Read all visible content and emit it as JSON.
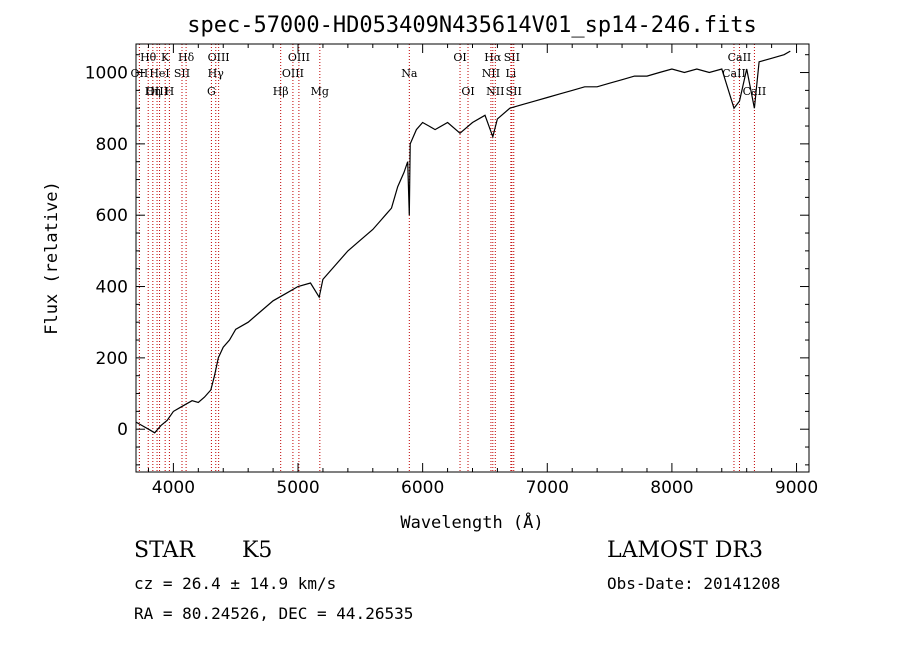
{
  "chart_data": {
    "type": "line",
    "title": "spec-57000-HD053409N435614V01_sp14-246.fits",
    "xlabel": "Wavelength (Å)",
    "ylabel": "Flux (relative)",
    "xlim": [
      3700,
      9100
    ],
    "ylim": [
      -120,
      1080
    ],
    "x_ticks": [
      4000,
      5000,
      6000,
      7000,
      8000,
      9000
    ],
    "y_ticks": [
      0,
      200,
      400,
      600,
      800,
      1000
    ],
    "grid": false,
    "series": [
      {
        "x": [
          3700,
          3750,
          3800,
          3850,
          3900,
          3950,
          4000,
          4050,
          4100,
          4150,
          4200,
          4250,
          4300,
          4330,
          4360,
          4400,
          4450,
          4500,
          4600,
          4700,
          4800,
          4900,
          5000,
          5100,
          5170,
          5200,
          5300,
          5400,
          5500,
          5600,
          5700,
          5750,
          5800,
          5850,
          5880,
          5893,
          5900,
          5950,
          6000,
          6050,
          6100,
          6200,
          6300,
          6400,
          6500,
          6563,
          6600,
          6700,
          6800,
          6900,
          7000,
          7100,
          7200,
          7300,
          7400,
          7500,
          7600,
          7700,
          7800,
          7900,
          8000,
          8100,
          8200,
          8300,
          8400,
          8498,
          8542,
          8600,
          8662,
          8700,
          8800,
          8900,
          8950
        ],
        "y": [
          20,
          10,
          0,
          -10,
          10,
          25,
          50,
          60,
          70,
          80,
          75,
          90,
          110,
          150,
          200,
          230,
          250,
          280,
          300,
          330,
          360,
          380,
          400,
          410,
          370,
          420,
          460,
          500,
          530,
          560,
          600,
          620,
          680,
          720,
          750,
          600,
          800,
          840,
          860,
          850,
          840,
          860,
          830,
          860,
          880,
          820,
          870,
          900,
          910,
          920,
          930,
          940,
          950,
          960,
          960,
          970,
          980,
          990,
          990,
          1000,
          1010,
          1000,
          1010,
          1000,
          1010,
          900,
          920,
          1010,
          900,
          1030,
          1040,
          1050,
          1060
        ]
      }
    ],
    "spectral_lines": [
      {
        "name": "Hθ",
        "w": 3798,
        "row": 1
      },
      {
        "name": "OII",
        "w": 3727,
        "row": 2
      },
      {
        "name": "OIII",
        "w": 3869,
        "row": 3
      },
      {
        "name": "K",
        "w": 3934,
        "row": 1
      },
      {
        "name": "HeI",
        "w": 3889,
        "row": 2
      },
      {
        "name": "Hη",
        "w": 3835,
        "row": 3
      },
      {
        "name": "Hδ",
        "w": 4102,
        "row": 1
      },
      {
        "name": "SII",
        "w": 4069,
        "row": 2
      },
      {
        "name": "H",
        "w": 3968,
        "row": 3
      },
      {
        "name": "OIII",
        "w": 4363,
        "row": 1
      },
      {
        "name": "Hγ",
        "w": 4340,
        "row": 2
      },
      {
        "name": "G",
        "w": 4305,
        "row": 3
      },
      {
        "name": "OIII",
        "w": 5007,
        "row": 1
      },
      {
        "name": "OIII",
        "w": 4959,
        "row": 2
      },
      {
        "name": "Hβ",
        "w": 4861,
        "row": 3
      },
      {
        "name": "Mg",
        "w": 5175,
        "row": 3
      },
      {
        "name": "Na",
        "w": 5893,
        "row": 2
      },
      {
        "name": "OI",
        "w": 6300,
        "row": 1
      },
      {
        "name": "OI",
        "w": 6364,
        "row": 3
      },
      {
        "name": "Hα",
        "w": 6563,
        "row": 1
      },
      {
        "name": "NII",
        "w": 6548,
        "row": 2
      },
      {
        "name": "NII",
        "w": 6583,
        "row": 3
      },
      {
        "name": "SII",
        "w": 6716,
        "row": 1
      },
      {
        "name": "Li",
        "w": 6708,
        "row": 2
      },
      {
        "name": "SII",
        "w": 6731,
        "row": 3
      },
      {
        "name": "CaII",
        "w": 8542,
        "row": 1
      },
      {
        "name": "CaII",
        "w": 8498,
        "row": 2
      },
      {
        "name": "CaII",
        "w": 8662,
        "row": 3
      }
    ]
  },
  "info": {
    "class_label": "STAR",
    "subclass_label": "K5",
    "survey": "LAMOST DR3",
    "cz": "cz = 26.4 ± 14.9 km/s",
    "obs_date": "Obs-Date: 20141208",
    "radec": "RA =  80.24526, DEC =  44.26535"
  }
}
